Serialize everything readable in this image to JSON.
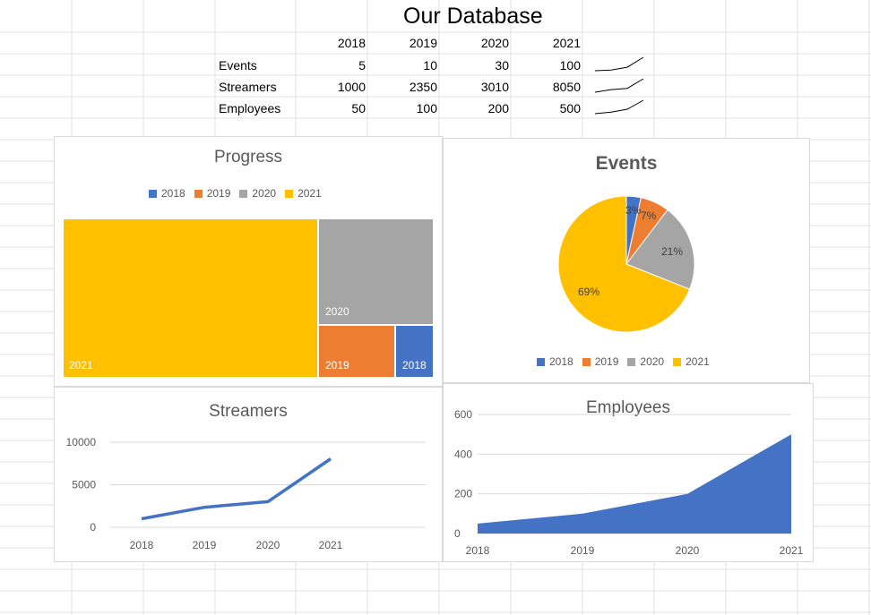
{
  "sheet": {
    "title": "Our Database",
    "years": [
      "2018",
      "2019",
      "2020",
      "2021"
    ],
    "rows": [
      {
        "label": "Events",
        "values": [
          "5",
          "10",
          "30",
          "100"
        ]
      },
      {
        "label": "Streamers",
        "values": [
          "1000",
          "2350",
          "3010",
          "8050"
        ]
      },
      {
        "label": "Employees",
        "values": [
          "50",
          "100",
          "200",
          "500"
        ]
      }
    ]
  },
  "colors": {
    "c2018": "#4472c4",
    "c2019": "#ed7d31",
    "c2020": "#a5a5a5",
    "c2021": "#ffc000"
  },
  "chart_data": [
    {
      "type": "treemap",
      "title": "Progress",
      "legend": [
        "2018",
        "2019",
        "2020",
        "2021"
      ],
      "legend_position": "top",
      "categories": [
        "2018",
        "2019",
        "2020",
        "2021"
      ],
      "values": [
        5,
        10,
        30,
        100
      ],
      "labels": [
        "2018",
        "2019",
        "2020",
        "2021"
      ]
    },
    {
      "type": "pie",
      "title": "Events",
      "categories": [
        "2018",
        "2019",
        "2020",
        "2021"
      ],
      "values": [
        5,
        10,
        30,
        100
      ],
      "data_labels": [
        "3%",
        "7%",
        "21%",
        "69%"
      ],
      "legend": [
        "2018",
        "2019",
        "2020",
        "2021"
      ],
      "legend_position": "bottom"
    },
    {
      "type": "line",
      "title": "Streamers",
      "x": [
        "2018",
        "2019",
        "2020",
        "2021"
      ],
      "series": [
        {
          "values": [
            1000,
            2350,
            3010,
            8050
          ]
        }
      ],
      "ylim": [
        0,
        10000
      ],
      "yticks": [
        "0",
        "5000",
        "10000"
      ],
      "grid": true
    },
    {
      "type": "area",
      "title": "Employees",
      "x": [
        "2018",
        "2019",
        "2020",
        "2021"
      ],
      "series": [
        {
          "values": [
            50,
            100,
            200,
            500
          ]
        }
      ],
      "ylim": [
        0,
        600
      ],
      "yticks": [
        "0",
        "200",
        "400",
        "600"
      ],
      "grid": true
    }
  ]
}
